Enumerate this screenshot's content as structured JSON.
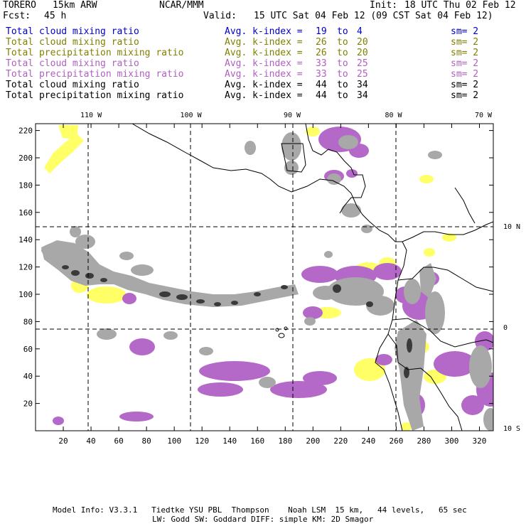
{
  "header": {
    "model": "TORERO",
    "resolution": "15km ARW",
    "center": "NCAR/MMM",
    "init_label": "Init:",
    "init_time": "18 UTC Thu 02 Feb 12",
    "fcst_label": "Fcst:",
    "fcst_hours": "45 h",
    "valid_label": "Valid:",
    "valid_time": "15 UTC Sat 04 Feb 12 (09 CST Sat 04 Feb 12)"
  },
  "legend": [
    {
      "field": "Total cloud mixing ratio",
      "range_label": "Avg. k-index =",
      "k_start": "19",
      "to": "to",
      "k_end": "4",
      "smooth": "sm= 2",
      "color": "#0000cc"
    },
    {
      "field": "Total cloud mixing ratio",
      "range_label": "Avg. k-index =",
      "k_start": "26",
      "to": "to",
      "k_end": "20",
      "smooth": "sm= 2",
      "color": "#808000"
    },
    {
      "field": "Total precipitation mixing ratio",
      "range_label": "Avg. k-index =",
      "k_start": "26",
      "to": "to",
      "k_end": "20",
      "smooth": "sm= 2",
      "color": "#808000"
    },
    {
      "field": "Total cloud mixing ratio",
      "range_label": "Avg. k-index =",
      "k_start": "33",
      "to": "to",
      "k_end": "25",
      "smooth": "sm= 2",
      "color": "#b060c0"
    },
    {
      "field": "Total precipitation mixing ratio",
      "range_label": "Avg. k-index =",
      "k_start": "33",
      "to": "to",
      "k_end": "25",
      "smooth": "sm= 2",
      "color": "#b060c0"
    },
    {
      "field": "Total cloud mixing ratio",
      "range_label": "Avg. k-index =",
      "k_start": "44",
      "to": "to",
      "k_end": "34",
      "smooth": "sm= 2",
      "color": "#000000"
    },
    {
      "field": "Total precipitation mixing ratio",
      "range_label": "Avg. k-index =",
      "k_start": "44",
      "to": "to",
      "k_end": "34",
      "smooth": "sm= 2",
      "color": "#000000"
    }
  ],
  "map": {
    "grid_x_max": 330,
    "grid_y_max": 225,
    "x_ticks": [
      20,
      40,
      60,
      80,
      100,
      120,
      140,
      160,
      180,
      200,
      220,
      240,
      260,
      280,
      300,
      320
    ],
    "y_ticks": [
      20,
      40,
      60,
      80,
      100,
      120,
      140,
      160,
      180,
      200,
      220
    ],
    "lon_labels": [
      {
        "label": "110 W",
        "x": 40
      },
      {
        "label": "100 W",
        "x": 112
      },
      {
        "label": "90 W",
        "x": 185
      },
      {
        "label": "80 W",
        "x": 258
      },
      {
        "label": "70 W",
        "x": 330
      }
    ],
    "lat_labels": [
      {
        "label": "10 N",
        "y": 150
      },
      {
        "label": "0",
        "y": 76
      },
      {
        "label": "10 S",
        "y": 2
      }
    ],
    "colors": {
      "yellow": "#ffff66",
      "purple": "#b469c8",
      "gray": "#a8a8a8",
      "dark": "#3a3a3a"
    }
  },
  "footer": {
    "line1": "Model Info: V3.3.1   Tiedtke YSU PBL  Thompson    Noah LSM  15 km,   44 levels,   65 sec",
    "line2": "LW: Godd SW: Goddard DIFF: simple KM: 2D Smagor"
  }
}
